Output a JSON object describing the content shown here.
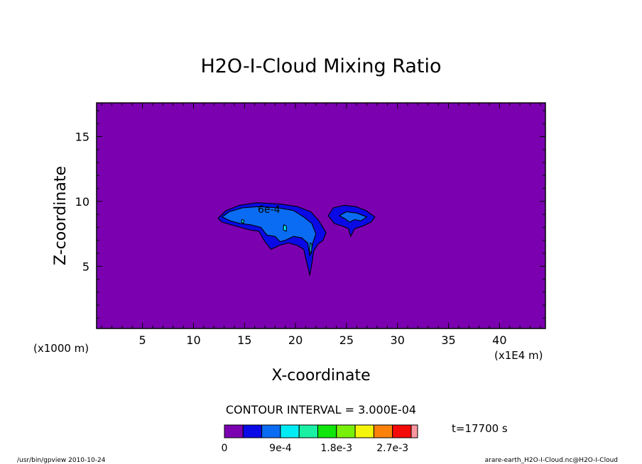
{
  "chart_data": {
    "type": "heatmap",
    "title": "H2O-I-Cloud Mixing Ratio",
    "xlabel": "X-coordinate",
    "ylabel": "Z-coordinate",
    "x_unit_left": "(x1000 m)",
    "x_unit_right": "(x1E4 m)",
    "xlim": [
      0.5,
      44.5
    ],
    "ylim": [
      0.2,
      17.6
    ],
    "x_ticks": [
      {
        "value": 5,
        "label": "5"
      },
      {
        "value": 10,
        "label": "10"
      },
      {
        "value": 15,
        "label": "15"
      },
      {
        "value": 20,
        "label": "20"
      },
      {
        "value": 25,
        "label": "25"
      },
      {
        "value": 30,
        "label": "30"
      },
      {
        "value": 35,
        "label": "35"
      },
      {
        "value": 40,
        "label": "40"
      }
    ],
    "y_ticks": [
      {
        "value": 5,
        "label": "5"
      },
      {
        "value": 10,
        "label": "10"
      },
      {
        "value": 15,
        "label": "15"
      }
    ],
    "contour_interval_text": "CONTOUR INTERVAL = 3.000E-04",
    "contour_label": "6e-4",
    "time_text": "t=17700 s",
    "background_color": "#7b00b0",
    "levels": [
      0,
      0.0003,
      0.0006,
      0.0009,
      0.0012,
      0.0015,
      0.0018,
      0.0021,
      0.0024,
      0.0027,
      0.003
    ],
    "colorbar_colors": [
      "#7b00b0",
      "#0a0ae6",
      "#0a6cf2",
      "#00ecf5",
      "#19f0a3",
      "#10e60c",
      "#78f00a",
      "#f5f50a",
      "#fa820a",
      "#f50a0a",
      "#fa96a0"
    ],
    "colorbar_tick_labels": [
      {
        "index": 0,
        "label": "0"
      },
      {
        "index": 3,
        "label": "9e-4"
      },
      {
        "index": 6,
        "label": "1.8e-3"
      },
      {
        "index": 9,
        "label": "2.7e-3"
      }
    ],
    "regions": [
      {
        "level": 1,
        "points": [
          [
            12.4,
            8.7
          ],
          [
            13.2,
            9.3
          ],
          [
            14.5,
            9.7
          ],
          [
            16.2,
            9.9
          ],
          [
            18.5,
            9.8
          ],
          [
            20.2,
            9.6
          ],
          [
            21.5,
            9.2
          ],
          [
            22.3,
            8.5
          ],
          [
            23.0,
            7.6
          ],
          [
            22.7,
            7.0
          ],
          [
            22.2,
            6.7
          ],
          [
            21.8,
            6.2
          ],
          [
            21.6,
            5.2
          ],
          [
            21.4,
            4.3
          ],
          [
            21.1,
            5.3
          ],
          [
            20.8,
            6.3
          ],
          [
            20.2,
            6.6
          ],
          [
            19.3,
            6.8
          ],
          [
            18.4,
            6.6
          ],
          [
            17.6,
            6.3
          ],
          [
            17.0,
            6.9
          ],
          [
            16.4,
            7.7
          ],
          [
            15.5,
            7.8
          ],
          [
            14.6,
            8.0
          ],
          [
            13.7,
            8.2
          ],
          [
            12.8,
            8.4
          ]
        ]
      },
      {
        "level": 1,
        "points": [
          [
            23.2,
            8.9
          ],
          [
            23.7,
            9.5
          ],
          [
            24.8,
            9.7
          ],
          [
            25.9,
            9.6
          ],
          [
            26.9,
            9.3
          ],
          [
            27.8,
            8.8
          ],
          [
            27.4,
            8.4
          ],
          [
            26.6,
            8.1
          ],
          [
            25.8,
            7.9
          ],
          [
            25.4,
            7.3
          ],
          [
            25.2,
            7.9
          ],
          [
            24.6,
            8.1
          ],
          [
            23.8,
            8.3
          ]
        ]
      },
      {
        "level": 2,
        "points": [
          [
            12.8,
            8.8
          ],
          [
            13.5,
            9.2
          ],
          [
            14.8,
            9.5
          ],
          [
            16.4,
            9.6
          ],
          [
            18.3,
            9.5
          ],
          [
            19.8,
            9.3
          ],
          [
            20.8,
            8.8
          ],
          [
            21.6,
            8.3
          ],
          [
            22.0,
            7.5
          ],
          [
            21.7,
            6.8
          ],
          [
            21.4,
            5.8
          ],
          [
            21.2,
            6.8
          ],
          [
            20.6,
            7.2
          ],
          [
            19.8,
            7.3
          ],
          [
            19.0,
            7.0
          ],
          [
            18.5,
            6.9
          ],
          [
            18.0,
            7.3
          ],
          [
            17.2,
            7.4
          ],
          [
            16.6,
            8.0
          ],
          [
            15.6,
            8.2
          ],
          [
            14.6,
            8.3
          ],
          [
            13.6,
            8.5
          ]
        ]
      },
      {
        "level": 2,
        "points": [
          [
            24.3,
            8.9
          ],
          [
            25.0,
            9.2
          ],
          [
            26.0,
            9.1
          ],
          [
            27.0,
            8.8
          ],
          [
            26.4,
            8.5
          ],
          [
            25.8,
            8.6
          ],
          [
            25.3,
            8.4
          ],
          [
            24.8,
            8.7
          ]
        ]
      },
      {
        "level": 3,
        "points": [
          [
            14.7,
            8.4
          ],
          [
            14.9,
            8.3
          ],
          [
            14.95,
            8.55
          ],
          [
            14.75,
            8.6
          ]
        ]
      },
      {
        "level": 3,
        "points": [
          [
            18.8,
            7.8
          ],
          [
            19.1,
            7.7
          ],
          [
            19.1,
            8.1
          ],
          [
            18.85,
            8.2
          ]
        ]
      },
      {
        "level": 3,
        "points": [
          [
            21.4,
            6.2
          ],
          [
            21.55,
            6.0
          ],
          [
            21.6,
            6.7
          ],
          [
            21.45,
            6.8
          ]
        ]
      }
    ]
  },
  "footer": {
    "left": "/usr/bin/gpview   2010-10-24",
    "right": "arare-earth_H2O-I-Cloud.nc@H2O-I-Cloud"
  }
}
